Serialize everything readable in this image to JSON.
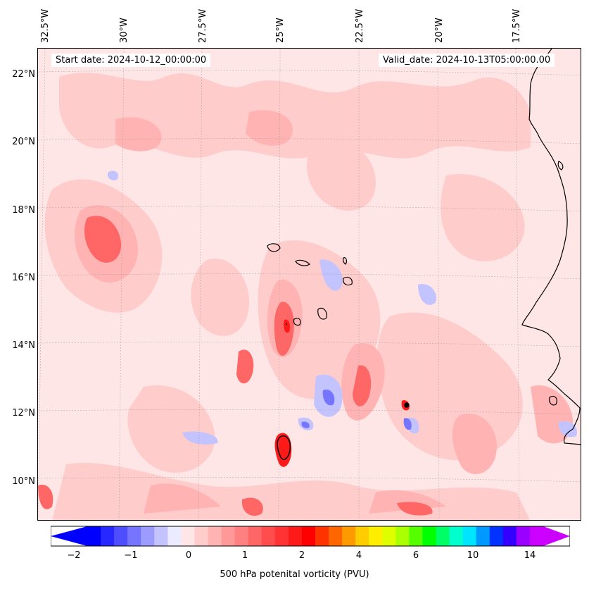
{
  "map": {
    "start_date_label": "Start date: 2024-10-12_00:00:00",
    "valid_date_label": "Valid_date: 2024-10-13T05:00:00.00",
    "longitude_labels": [
      "32.5°W",
      "30°W",
      "27.5°W",
      "25°W",
      "22.5°W",
      "20°W",
      "17.5°W"
    ],
    "latitude_labels": [
      "22°N",
      "20°N",
      "18°N",
      "16°N",
      "14°N",
      "12°N",
      "10°N"
    ],
    "lon_range": [
      -32.5,
      -15.3
    ],
    "lat_range": [
      8.9,
      22.8
    ]
  },
  "colorbar": {
    "title": "500 hPa potenital vorticity (PVU)",
    "tick_labels": [
      "−2",
      "−1",
      "0",
      "1",
      "2",
      "4",
      "6",
      "10",
      "14"
    ],
    "colors": [
      "#0000ff",
      "#2727ff",
      "#4e4eff",
      "#7575ff",
      "#9c9cff",
      "#c3c3ff",
      "#ebebff",
      "#ffe6e6",
      "#ffcccc",
      "#ffb3b3",
      "#ff9999",
      "#ff8080",
      "#ff6666",
      "#ff4d4d",
      "#ff3333",
      "#ff1a1a",
      "#ff0000",
      "#ff3300",
      "#ff6600",
      "#ff9900",
      "#ffcc00",
      "#ffee00",
      "#ddff00",
      "#aaff00",
      "#55ff00",
      "#00ff00",
      "#00ff66",
      "#00ffcc",
      "#00e5ff",
      "#0099ff",
      "#0033ff",
      "#3300ff",
      "#9900ff",
      "#cc00ff"
    ],
    "under_color": "#0000ff",
    "over_color": "#cc00ff"
  }
}
